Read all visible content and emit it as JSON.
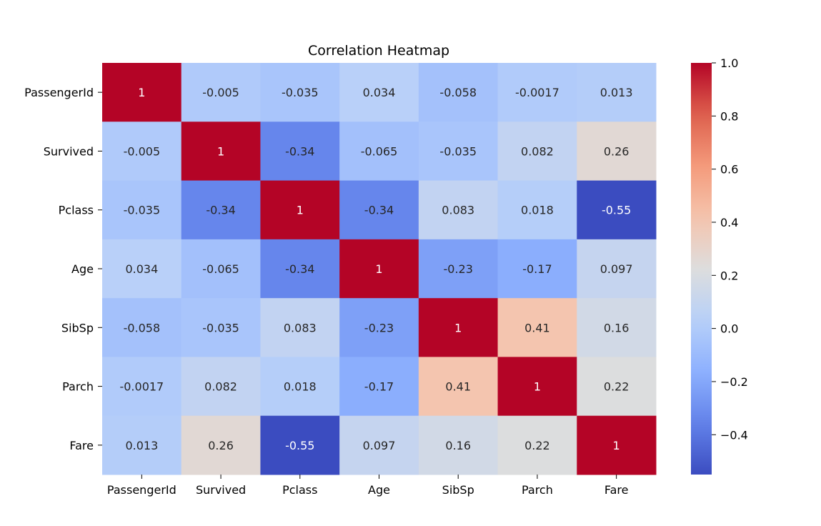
{
  "chart_data": {
    "type": "heatmap",
    "title": "Correlation Heatmap",
    "xlabel": "",
    "ylabel": "",
    "x_categories": [
      "PassengerId",
      "Survived",
      "Pclass",
      "Age",
      "SibSp",
      "Parch",
      "Fare"
    ],
    "y_categories": [
      "PassengerId",
      "Survived",
      "Pclass",
      "Age",
      "SibSp",
      "Parch",
      "Fare"
    ],
    "values": [
      [
        1,
        -0.005,
        -0.035,
        0.034,
        -0.058,
        -0.0017,
        0.013
      ],
      [
        -0.005,
        1,
        -0.34,
        -0.065,
        -0.035,
        0.082,
        0.26
      ],
      [
        -0.035,
        -0.34,
        1,
        -0.34,
        0.083,
        0.018,
        -0.55
      ],
      [
        0.034,
        -0.065,
        -0.34,
        1,
        -0.23,
        -0.17,
        0.097
      ],
      [
        -0.058,
        -0.035,
        0.083,
        -0.23,
        1,
        0.41,
        0.16
      ],
      [
        -0.0017,
        0.082,
        0.018,
        -0.17,
        0.41,
        1,
        0.22
      ],
      [
        0.013,
        0.26,
        -0.55,
        0.097,
        0.16,
        0.22,
        1
      ]
    ],
    "value_labels": [
      [
        "1",
        "-0.005",
        "-0.035",
        "0.034",
        "-0.058",
        "-0.0017",
        "0.013"
      ],
      [
        "-0.005",
        "1",
        "-0.34",
        "-0.065",
        "-0.035",
        "0.082",
        "0.26"
      ],
      [
        "-0.035",
        "-0.34",
        "1",
        "-0.34",
        "0.083",
        "0.018",
        "-0.55"
      ],
      [
        "0.034",
        "-0.065",
        "-0.34",
        "1",
        "-0.23",
        "-0.17",
        "0.097"
      ],
      [
        "-0.058",
        "-0.035",
        "0.083",
        "-0.23",
        "1",
        "0.41",
        "0.16"
      ],
      [
        "-0.0017",
        "0.082",
        "0.018",
        "-0.17",
        "0.41",
        "1",
        "0.22"
      ],
      [
        "0.013",
        "0.26",
        "-0.55",
        "0.097",
        "0.16",
        "0.22",
        "1"
      ]
    ],
    "colormap": "coolwarm",
    "color_range": [
      -0.55,
      1.0
    ],
    "colorbar_ticks": [
      1.0,
      0.8,
      0.6,
      0.4,
      0.2,
      0.0,
      -0.2,
      -0.4
    ],
    "colorbar_tick_labels": [
      "1.0",
      "0.8",
      "0.6",
      "0.4",
      "0.2",
      "0.0",
      "−0.2",
      "−0.4"
    ],
    "colorbar_placement": "right",
    "grid": false
  }
}
